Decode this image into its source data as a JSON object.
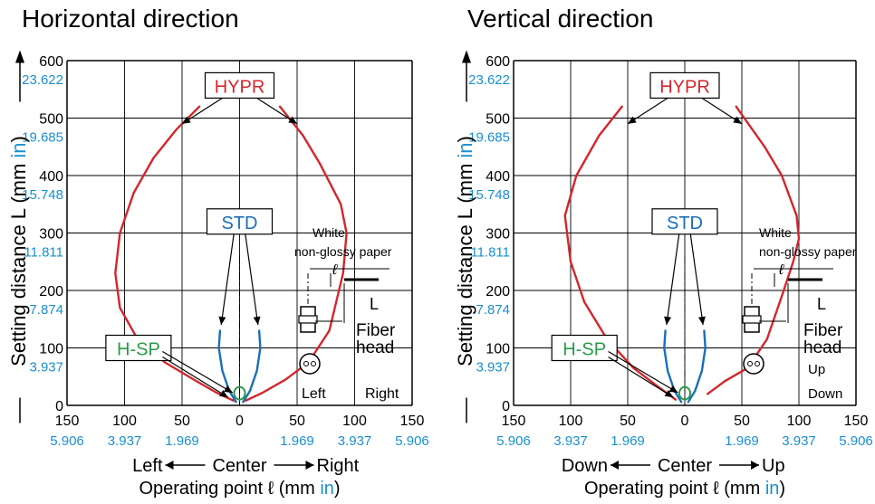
{
  "chart_data": [
    {
      "type": "line",
      "title": "Horizontal direction",
      "ylabel": "Setting distance L (mm in)",
      "xlabel": "Operating point ℓ (mm in)",
      "direction_labels": {
        "left": "Left",
        "center": "Center",
        "right": "Right"
      },
      "xlim": [
        -150,
        150
      ],
      "ylim": [
        0,
        600
      ],
      "grid": true,
      "x_ticks": [
        -150,
        -100,
        -50,
        0,
        50,
        100,
        150
      ],
      "x_tick_labels_mm": [
        "150",
        "100",
        "50",
        "0",
        "50",
        "100",
        "150"
      ],
      "x_tick_labels_in": [
        "5.906",
        "3.937",
        "1.969",
        "",
        "1.969",
        "3.937",
        "5.906"
      ],
      "y_ticks": [
        0,
        100,
        200,
        300,
        400,
        500,
        600
      ],
      "y_tick_labels_mm": [
        "0",
        "100",
        "200",
        "300",
        "400",
        "500",
        "600"
      ],
      "y_tick_labels_in": [
        "",
        "3.937",
        "7.874",
        "11.811",
        "15.748",
        "19.685",
        "23.622"
      ],
      "series": [
        {
          "name": "HYPR",
          "color": "#d3262e",
          "segments": [
            [
              [
                -35,
                520
              ],
              [
                -55,
                480
              ],
              [
                -75,
                430
              ],
              [
                -92,
                370
              ],
              [
                -104,
                300
              ],
              [
                -108,
                230
              ],
              [
                -104,
                170
              ],
              [
                -90,
                120
              ],
              [
                -65,
                75
              ],
              [
                -40,
                45
              ],
              [
                -20,
                22
              ],
              [
                -5,
                8
              ]
            ],
            [
              [
                5,
                8
              ],
              [
                20,
                22
              ],
              [
                40,
                45
              ],
              [
                60,
                75
              ],
              [
                78,
                130
              ],
              [
                90,
                230
              ],
              [
                93,
                300
              ],
              [
                88,
                350
              ],
              [
                70,
                420
              ],
              [
                55,
                470
              ],
              [
                35,
                520
              ]
            ]
          ]
        },
        {
          "name": "STD",
          "color": "#1a6fba",
          "segments": [
            [
              [
                -17,
                130
              ],
              [
                -18,
                100
              ],
              [
                -15,
                60
              ],
              [
                -9,
                25
              ],
              [
                -3,
                6
              ]
            ],
            [
              [
                3,
                6
              ],
              [
                9,
                25
              ],
              [
                15,
                60
              ],
              [
                18,
                100
              ],
              [
                17,
                130
              ]
            ]
          ]
        },
        {
          "name": "H-SP",
          "color": "#2a9a4a",
          "segments": [
            [
              [
                0,
                18
              ]
            ]
          ]
        }
      ]
    },
    {
      "type": "line",
      "title": "Vertical direction",
      "ylabel": "Setting distance L (mm in)",
      "xlabel": "Operating point ℓ (mm in)",
      "direction_labels": {
        "left": "Down",
        "center": "Center",
        "right": "Up"
      },
      "xlim": [
        -150,
        150
      ],
      "ylim": [
        0,
        600
      ],
      "grid": true,
      "x_ticks": [
        -150,
        -100,
        -50,
        0,
        50,
        100,
        150
      ],
      "x_tick_labels_mm": [
        "150",
        "100",
        "50",
        "0",
        "50",
        "100",
        "150"
      ],
      "x_tick_labels_in": [
        "5.906",
        "3.937",
        "1.969",
        "",
        "1.969",
        "3.937",
        "5.906"
      ],
      "y_ticks": [
        0,
        100,
        200,
        300,
        400,
        500,
        600
      ],
      "y_tick_labels_mm": [
        "0",
        "100",
        "200",
        "300",
        "400",
        "500",
        "600"
      ],
      "y_tick_labels_in": [
        "",
        "3.937",
        "7.874",
        "11.811",
        "15.748",
        "19.685",
        "23.622"
      ],
      "series": [
        {
          "name": "HYPR",
          "color": "#d3262e",
          "segments": [
            [
              [
                -55,
                520
              ],
              [
                -75,
                470
              ],
              [
                -95,
                400
              ],
              [
                -105,
                330
              ],
              [
                -100,
                250
              ],
              [
                -88,
                180
              ],
              [
                -68,
                115
              ],
              [
                -45,
                65
              ],
              [
                -25,
                35
              ],
              [
                -8,
                10
              ]
            ],
            [
              [
                20,
                20
              ],
              [
                35,
                42
              ],
              [
                55,
                65
              ],
              [
                72,
                115
              ],
              [
                85,
                190
              ],
              [
                95,
                250
              ],
              [
                100,
                290
              ],
              [
                98,
                330
              ],
              [
                85,
                400
              ],
              [
                70,
                450
              ],
              [
                45,
                520
              ]
            ]
          ]
        },
        {
          "name": "STD",
          "color": "#1a6fba",
          "segments": [
            [
              [
                -17,
                130
              ],
              [
                -18,
                100
              ],
              [
                -15,
                60
              ],
              [
                -9,
                25
              ],
              [
                -3,
                6
              ]
            ],
            [
              [
                3,
                6
              ],
              [
                9,
                25
              ],
              [
                15,
                60
              ],
              [
                18,
                100
              ],
              [
                17,
                130
              ]
            ]
          ]
        },
        {
          "name": "H-SP",
          "color": "#2a9a4a",
          "segments": [
            [
              [
                0,
                18
              ]
            ]
          ]
        }
      ]
    }
  ],
  "inset": {
    "target_label_line1": "White",
    "target_label_line2": "non-glossy paper",
    "ell_symbol": "ℓ",
    "L_symbol": "L",
    "fiber_head_line1": "Fiber",
    "fiber_head_line2": "head",
    "horizontal_dir_a": "Left",
    "horizontal_dir_b": "Right",
    "vertical_dir_a": "Up",
    "vertical_dir_b": "Down"
  },
  "unit_in": "in",
  "colors": {
    "hypr": "#d3262e",
    "std": "#1a6fba",
    "hsp": "#2a9a4a",
    "inch": "#1a8fd0",
    "grid": "#000000"
  }
}
